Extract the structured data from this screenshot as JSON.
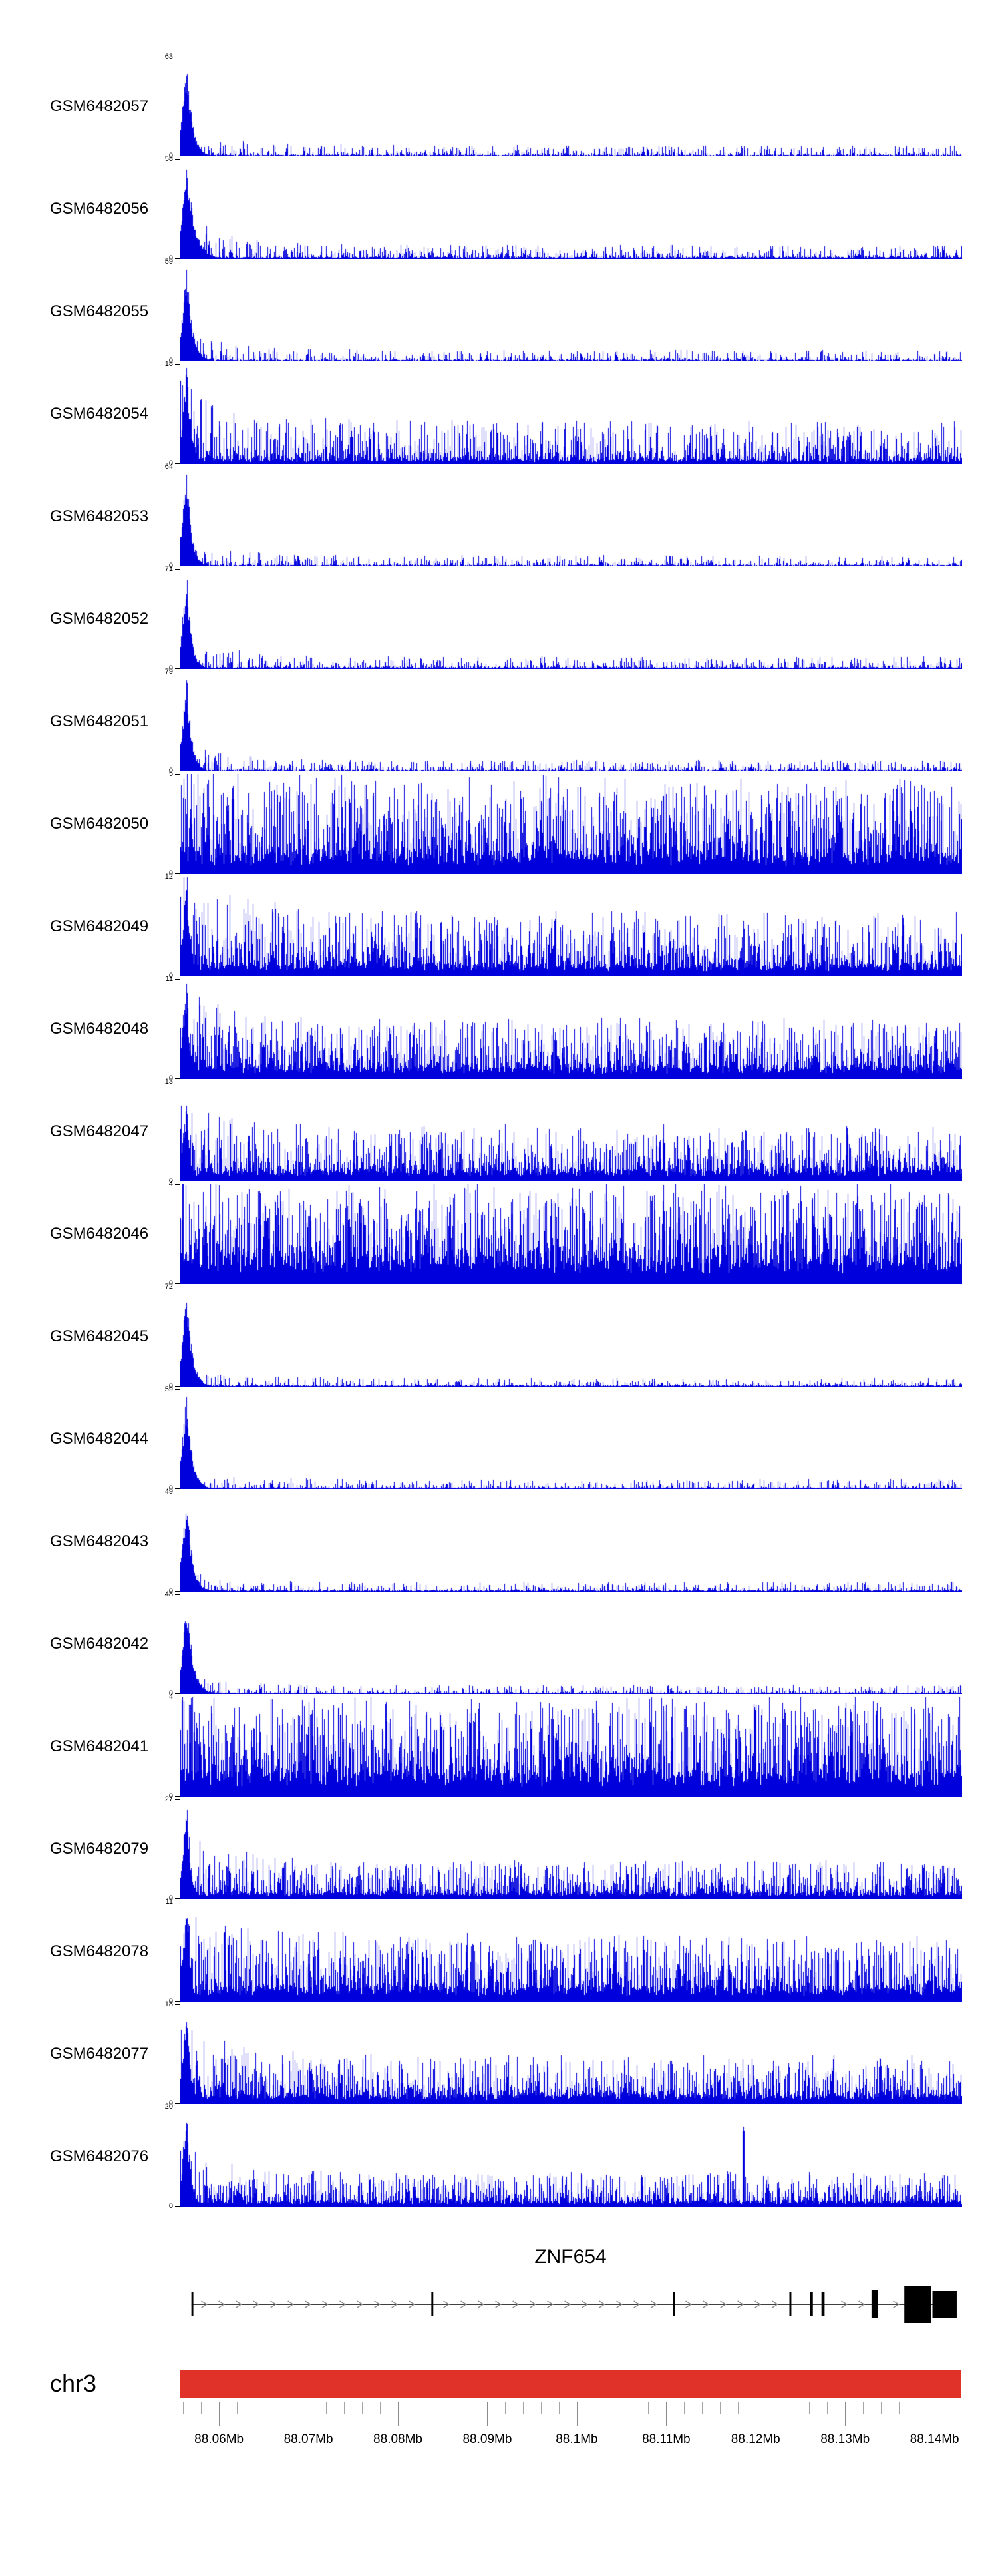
{
  "style": {
    "background": "#ffffff",
    "data_color": "#0000dd",
    "axis_color": "#000000",
    "ideogram_color": "#e03228",
    "gene_color": "#000000",
    "arrow_color": "#8a8a8a"
  },
  "chart_data": {
    "type": "area",
    "title": "",
    "description": "Genome-browser style figure: 21 read-coverage histogram tracks (GEO GSM samples, blue) over the ZNF654 locus on chromosome 3, with the ZNF654 gene model, a red chromosome ideogram bar and a genomic coordinate axis in Mb.",
    "region": {
      "chromosome": "chr3",
      "start_mb": 88.0556,
      "end_mb": 88.143,
      "unit": "Mb"
    },
    "x_axis": {
      "tick_labels": [
        "88.06Mb",
        "88.07Mb",
        "88.08Mb",
        "88.09Mb",
        "88.1Mb",
        "88.11Mb",
        "88.12Mb",
        "88.13Mb",
        "88.14Mb"
      ],
      "tick_values_mb": [
        88.06,
        88.07,
        88.08,
        88.09,
        88.1,
        88.11,
        88.12,
        88.13,
        88.14
      ],
      "minor_tick_step_mb": 0.002
    },
    "tracks": [
      {
        "name": "GSM6482057",
        "ymin": 0,
        "ymax": 63,
        "profile": "promoter_peak",
        "render": {
          "peak": 1,
          "peakDecay": 0.007,
          "noiseBase": 0.015,
          "noiseVar": 0.1,
          "sharp": 5,
          "leftBoost": 2,
          "seed": 101
        }
      },
      {
        "name": "GSM6482056",
        "ymin": 0,
        "ymax": 58,
        "profile": "promoter_peak",
        "render": {
          "peak": 1,
          "peakDecay": 0.01,
          "noiseBase": 0.02,
          "noiseVar": 0.13,
          "sharp": 4.5,
          "leftBoost": 2.5,
          "seed": 102
        }
      },
      {
        "name": "GSM6482055",
        "ymin": 0,
        "ymax": 59,
        "profile": "promoter_peak",
        "render": {
          "peak": 1,
          "peakDecay": 0.007,
          "noiseBase": 0.016,
          "noiseVar": 0.1,
          "sharp": 5,
          "leftBoost": 2,
          "seed": 103
        }
      },
      {
        "name": "GSM6482054",
        "ymin": 0,
        "ymax": 18,
        "profile": "peak_and_noise",
        "render": {
          "peak": 1,
          "peakDecay": 0.006,
          "noiseBase": 0.05,
          "noiseVar": 0.4,
          "sharp": 2.8,
          "leftBoost": 1.2,
          "seed": 104
        }
      },
      {
        "name": "GSM6482053",
        "ymin": 0,
        "ymax": 64,
        "profile": "promoter_peak",
        "render": {
          "peak": 1,
          "peakDecay": 0.006,
          "noiseBase": 0.015,
          "noiseVar": 0.1,
          "sharp": 5,
          "leftBoost": 2,
          "seed": 105
        }
      },
      {
        "name": "GSM6482052",
        "ymin": 0,
        "ymax": 71,
        "profile": "promoter_peak",
        "render": {
          "peak": 1,
          "peakDecay": 0.006,
          "noiseBase": 0.018,
          "noiseVar": 0.11,
          "sharp": 5,
          "leftBoost": 2,
          "seed": 106
        }
      },
      {
        "name": "GSM6482051",
        "ymin": 0,
        "ymax": 79,
        "profile": "promoter_peak",
        "render": {
          "peak": 1,
          "peakDecay": 0.006,
          "noiseBase": 0.015,
          "noiseVar": 0.1,
          "sharp": 5,
          "leftBoost": 2,
          "seed": 107
        }
      },
      {
        "name": "GSM6482050",
        "ymin": 0,
        "ymax": 5,
        "profile": "broad_noise",
        "render": {
          "peak": 0,
          "peakDecay": 0.006,
          "noiseBase": 0.2,
          "noiseVar": 0.8,
          "sharp": 2.0,
          "leftBoost": 0.3,
          "seed": 108
        }
      },
      {
        "name": "GSM6482049",
        "ymin": 0,
        "ymax": 12,
        "profile": "peak_and_noise",
        "render": {
          "peak": 1,
          "peakDecay": 0.005,
          "noiseBase": 0.13,
          "noiseVar": 0.55,
          "sharp": 2.4,
          "leftBoost": 1.0,
          "seed": 109
        }
      },
      {
        "name": "GSM6482048",
        "ymin": 0,
        "ymax": 11,
        "profile": "peak_and_noise",
        "render": {
          "peak": 1,
          "peakDecay": 0.004,
          "noiseBase": 0.13,
          "noiseVar": 0.5,
          "sharp": 2.4,
          "leftBoost": 0.7,
          "seed": 110
        }
      },
      {
        "name": "GSM6482047",
        "ymin": 0,
        "ymax": 13,
        "profile": "peak_and_noise",
        "render": {
          "peak": 0.85,
          "peakDecay": 0.004,
          "noiseBase": 0.13,
          "noiseVar": 0.45,
          "sharp": 2.4,
          "leftBoost": 0.5,
          "seed": 111
        }
      },
      {
        "name": "GSM6482046",
        "ymin": 0,
        "ymax": 4,
        "profile": "broad_noise",
        "render": {
          "peak": 0,
          "peakDecay": 0.006,
          "noiseBase": 0.25,
          "noiseVar": 0.8,
          "sharp": 1.8,
          "leftBoost": 0.2,
          "seed": 112
        }
      },
      {
        "name": "GSM6482045",
        "ymin": 0,
        "ymax": 72,
        "profile": "promoter_peak",
        "render": {
          "peak": 1,
          "peakDecay": 0.007,
          "noiseBase": 0.012,
          "noiseVar": 0.08,
          "sharp": 6,
          "leftBoost": 1.5,
          "seed": 113
        }
      },
      {
        "name": "GSM6482044",
        "ymin": 0,
        "ymax": 59,
        "profile": "promoter_peak",
        "render": {
          "peak": 1,
          "peakDecay": 0.007,
          "noiseBase": 0.014,
          "noiseVar": 0.09,
          "sharp": 6,
          "leftBoost": 1.5,
          "seed": 114
        }
      },
      {
        "name": "GSM6482043",
        "ymin": 0,
        "ymax": 49,
        "profile": "promoter_peak",
        "render": {
          "peak": 1,
          "peakDecay": 0.007,
          "noiseBase": 0.014,
          "noiseVar": 0.09,
          "sharp": 6,
          "leftBoost": 1.5,
          "seed": 115
        }
      },
      {
        "name": "GSM6482042",
        "ymin": 0,
        "ymax": 48,
        "profile": "promoter_peak",
        "render": {
          "peak": 1,
          "peakDecay": 0.008,
          "noiseBase": 0.012,
          "noiseVar": 0.08,
          "sharp": 6,
          "leftBoost": 1.5,
          "seed": 116
        }
      },
      {
        "name": "GSM6482041",
        "ymin": 0,
        "ymax": 4,
        "profile": "broad_noise",
        "render": {
          "peak": 0,
          "peakDecay": 0.006,
          "noiseBase": 0.24,
          "noiseVar": 0.8,
          "sharp": 1.8,
          "leftBoost": 0.2,
          "seed": 117
        }
      },
      {
        "name": "GSM6482079",
        "ymin": 0,
        "ymax": 27,
        "profile": "peak_and_noise",
        "render": {
          "peak": 1,
          "peakDecay": 0.005,
          "noiseBase": 0.07,
          "noiseVar": 0.33,
          "sharp": 2.8,
          "leftBoost": 1.0,
          "seed": 118
        }
      },
      {
        "name": "GSM6482078",
        "ymin": 0,
        "ymax": 11,
        "profile": "peak_and_noise",
        "render": {
          "peak": 1,
          "peakDecay": 0.004,
          "noiseBase": 0.15,
          "noiseVar": 0.55,
          "sharp": 2.2,
          "leftBoost": 0.5,
          "seed": 119
        }
      },
      {
        "name": "GSM6482077",
        "ymin": 0,
        "ymax": 18,
        "profile": "peak_and_noise",
        "render": {
          "peak": 1,
          "peakDecay": 0.005,
          "noiseBase": 0.1,
          "noiseVar": 0.4,
          "sharp": 2.5,
          "leftBoost": 1.0,
          "seed": 120
        }
      },
      {
        "name": "GSM6482076",
        "ymin": 0,
        "ymax": 20,
        "profile": "peak_and_noise",
        "render": {
          "peak": 1,
          "peakDecay": 0.005,
          "noiseBase": 0.06,
          "noiseVar": 0.3,
          "sharp": 2.8,
          "leftBoost": 1.0,
          "seed": 121,
          "extraSpikes": [
            {
              "x": 0.72,
              "h": 0.88
            }
          ]
        }
      }
    ],
    "gene_track": {
      "name": "ZNF654",
      "strand_arrow_direction": "right",
      "exons_mb": [
        [
          88.0568,
          88.0572
        ],
        [
          88.0837,
          88.0841
        ],
        [
          88.1106,
          88.111
        ],
        [
          88.1236,
          88.124
        ],
        [
          88.1259,
          88.1263
        ],
        [
          88.1272,
          88.1276
        ],
        [
          88.1328,
          88.1335
        ],
        [
          88.1365,
          88.1395
        ],
        [
          88.1396,
          88.1423
        ]
      ],
      "exons_frac": [
        {
          "f": 0.015,
          "w": 0.0025,
          "h": 36
        },
        {
          "f": 0.322,
          "w": 0.0025,
          "h": 36
        },
        {
          "f": 0.631,
          "w": 0.0025,
          "h": 36
        },
        {
          "f": 0.78,
          "w": 0.0025,
          "h": 36
        },
        {
          "f": 0.806,
          "w": 0.004,
          "h": 36
        },
        {
          "f": 0.821,
          "w": 0.004,
          "h": 36
        },
        {
          "f": 0.885,
          "w": 0.008,
          "h": 42
        },
        {
          "f": 0.927,
          "w": 0.034,
          "h": 56
        },
        {
          "f": 0.963,
          "w": 0.031,
          "h": 40
        }
      ]
    },
    "ideogram": {
      "chromosome": "chr3"
    }
  }
}
